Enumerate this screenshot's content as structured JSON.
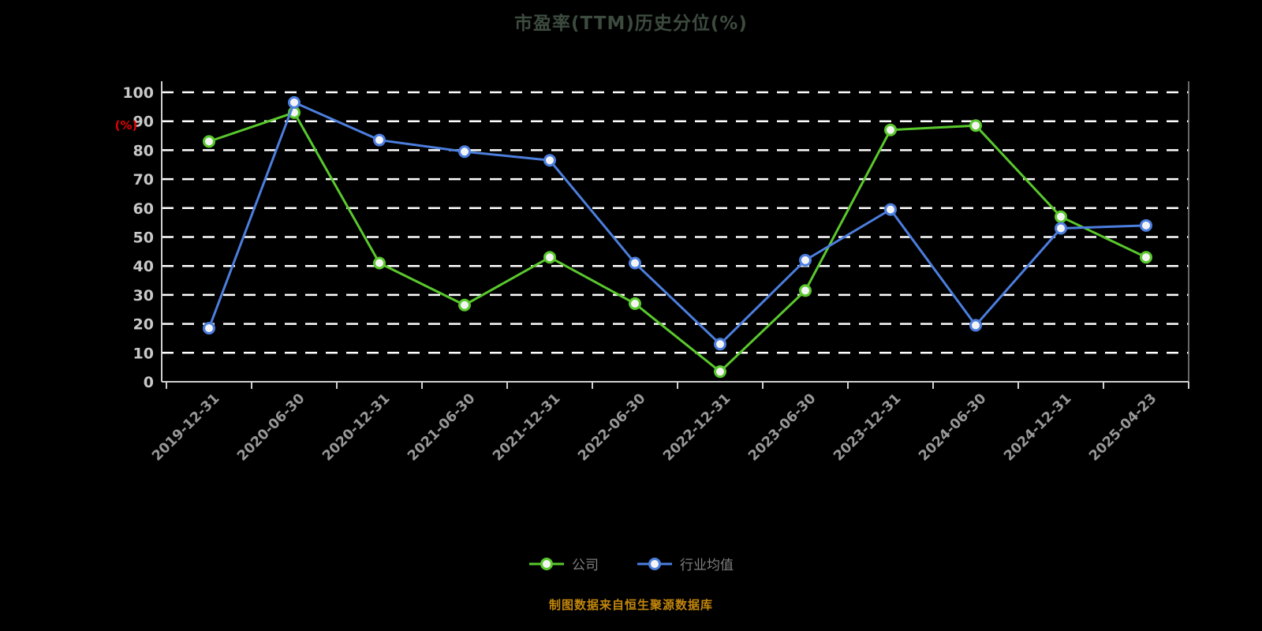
{
  "title": "市盈率(TTM)历史分位(%)",
  "footer": "制图数据来自恒生聚源数据库",
  "chart_data": {
    "type": "line",
    "title": "市盈率(TTM)历史分位(%)",
    "ylabel": "(%)",
    "ylim": [
      0,
      100
    ],
    "ytick_step": 10,
    "grid": "horizontal-dashed-white",
    "legend_position": "bottom",
    "background_color": "#000000",
    "categories": [
      "2019-12-31",
      "2020-06-30",
      "2020-12-31",
      "2021-06-30",
      "2021-12-31",
      "2022-06-30",
      "2022-12-31",
      "2023-06-30",
      "2023-12-31",
      "2024-06-30",
      "2024-12-31",
      "2025-04-23"
    ],
    "series": [
      {
        "name": "公司",
        "color": "#5ac82d",
        "marker": "circle",
        "values": [
          83,
          93,
          41,
          26.5,
          43,
          27,
          3.5,
          31.5,
          87,
          88.5,
          57,
          43
        ]
      },
      {
        "name": "行业均值",
        "color": "#4c7ede",
        "marker": "circle",
        "values": [
          18.5,
          96.5,
          83.5,
          79.5,
          76.5,
          41,
          13,
          42,
          59.5,
          19.5,
          53,
          54
        ]
      }
    ]
  },
  "style_colors": {
    "ylabel_color": "#e60000",
    "ytick_color": "#c8c8c8",
    "xtick_color": "#989898",
    "axis_color": "#cfcfcf",
    "gridline_color": "#ffffff",
    "title_color": "#3d4b3f",
    "footer_color": "#c2860b",
    "legend_text_color": "#7f7f7f"
  }
}
